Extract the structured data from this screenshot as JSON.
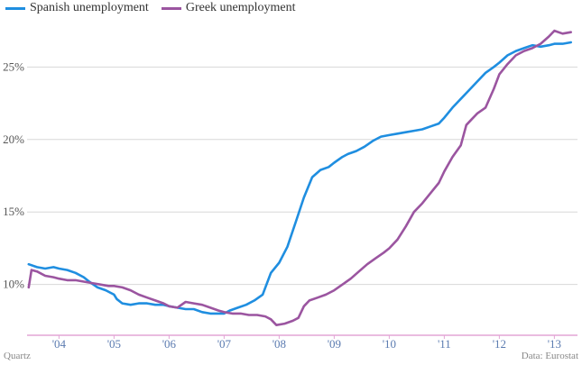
{
  "chart_data": {
    "type": "line",
    "title": "",
    "xlabel": "",
    "ylabel": "",
    "ylim": [
      6.5,
      28.5
    ],
    "xlim": [
      2003.42,
      2013.42
    ],
    "y_ticks": [
      10,
      15,
      20,
      25
    ],
    "y_tick_labels": [
      "10%",
      "15%",
      "20%",
      "25%"
    ],
    "x_ticks": [
      2004,
      2005,
      2006,
      2007,
      2008,
      2009,
      2010,
      2011,
      2012,
      2013
    ],
    "x_tick_labels": [
      "'04",
      "'05",
      "'06",
      "'07",
      "'08",
      "'09",
      "'10",
      "'11",
      "'12",
      "'13"
    ],
    "grid": "horizontal",
    "legend": "top-left",
    "colors": {
      "spain": "#1f8ee0",
      "greece": "#9b55a0",
      "axis": "#e3a6d6",
      "grid": "#d8d8d8"
    },
    "series": [
      {
        "name": "Spanish unemployment",
        "key": "spain",
        "x": [
          2003.45,
          2003.6,
          2003.75,
          2003.9,
          2004.0,
          2004.15,
          2004.3,
          2004.45,
          2004.55,
          2004.7,
          2004.85,
          2005.0,
          2005.05,
          2005.15,
          2005.3,
          2005.45,
          2005.6,
          2005.75,
          2005.9,
          2006.0,
          2006.15,
          2006.3,
          2006.45,
          2006.6,
          2006.75,
          2006.9,
          2007.0,
          2007.1,
          2007.25,
          2007.4,
          2007.55,
          2007.7,
          2007.85,
          2008.0,
          2008.15,
          2008.3,
          2008.45,
          2008.6,
          2008.75,
          2008.9,
          2009.0,
          2009.15,
          2009.25,
          2009.4,
          2009.55,
          2009.7,
          2009.85,
          2010.0,
          2010.15,
          2010.3,
          2010.45,
          2010.6,
          2010.75,
          2010.9,
          2011.0,
          2011.15,
          2011.3,
          2011.45,
          2011.6,
          2011.75,
          2011.9,
          2012.0,
          2012.15,
          2012.3,
          2012.45,
          2012.6,
          2012.75,
          2012.9,
          2013.0,
          2013.15,
          2013.3
        ],
        "values": [
          11.4,
          11.2,
          11.1,
          11.2,
          11.1,
          11.0,
          10.8,
          10.5,
          10.2,
          9.8,
          9.6,
          9.3,
          9.0,
          8.7,
          8.6,
          8.7,
          8.7,
          8.6,
          8.6,
          8.5,
          8.4,
          8.3,
          8.3,
          8.1,
          8.0,
          8.0,
          8.0,
          8.2,
          8.4,
          8.6,
          8.9,
          9.3,
          10.8,
          11.5,
          12.6,
          14.3,
          16.0,
          17.4,
          17.9,
          18.1,
          18.4,
          18.8,
          19.0,
          19.2,
          19.5,
          19.9,
          20.2,
          20.3,
          20.4,
          20.5,
          20.6,
          20.7,
          20.9,
          21.1,
          21.5,
          22.2,
          22.8,
          23.4,
          24.0,
          24.6,
          25.0,
          25.3,
          25.8,
          26.1,
          26.3,
          26.5,
          26.4,
          26.5,
          26.6,
          26.6,
          26.7
        ]
      },
      {
        "name": "Greek unemployment",
        "key": "greece",
        "x": [
          2003.45,
          2003.5,
          2003.6,
          2003.75,
          2003.9,
          2004.0,
          2004.15,
          2004.3,
          2004.45,
          2004.6,
          2004.75,
          2004.9,
          2005.0,
          2005.15,
          2005.3,
          2005.45,
          2005.6,
          2005.75,
          2005.9,
          2006.0,
          2006.15,
          2006.3,
          2006.45,
          2006.6,
          2006.75,
          2006.9,
          2007.0,
          2007.15,
          2007.3,
          2007.45,
          2007.6,
          2007.75,
          2007.85,
          2007.95,
          2008.1,
          2008.25,
          2008.35,
          2008.45,
          2008.55,
          2008.7,
          2008.85,
          2009.0,
          2009.15,
          2009.3,
          2009.45,
          2009.6,
          2009.75,
          2009.9,
          2010.0,
          2010.15,
          2010.3,
          2010.45,
          2010.6,
          2010.75,
          2010.9,
          2011.0,
          2011.15,
          2011.3,
          2011.4,
          2011.5,
          2011.6,
          2011.75,
          2011.9,
          2012.0,
          2012.15,
          2012.3,
          2012.45,
          2012.6,
          2012.75,
          2012.9,
          2013.0,
          2013.15,
          2013.3
        ],
        "values": [
          9.8,
          11.0,
          10.9,
          10.6,
          10.5,
          10.4,
          10.3,
          10.3,
          10.2,
          10.1,
          10.0,
          9.9,
          9.9,
          9.8,
          9.6,
          9.3,
          9.1,
          8.9,
          8.7,
          8.5,
          8.4,
          8.8,
          8.7,
          8.6,
          8.4,
          8.2,
          8.1,
          8.0,
          8.0,
          7.9,
          7.9,
          7.8,
          7.6,
          7.2,
          7.3,
          7.5,
          7.7,
          8.5,
          8.9,
          9.1,
          9.3,
          9.6,
          10.0,
          10.4,
          10.9,
          11.4,
          11.8,
          12.2,
          12.5,
          13.1,
          14.0,
          15.0,
          15.6,
          16.3,
          17.0,
          17.8,
          18.8,
          19.6,
          21.0,
          21.4,
          21.8,
          22.2,
          23.5,
          24.5,
          25.2,
          25.8,
          26.1,
          26.3,
          26.6,
          27.1,
          27.5,
          27.3,
          27.4
        ]
      }
    ]
  },
  "credits": {
    "source_left": "Quartz",
    "source_right": "Data: Eurostat"
  }
}
